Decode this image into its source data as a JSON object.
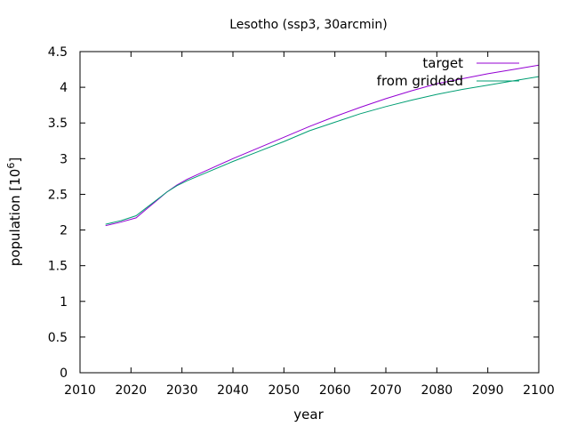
{
  "chart_data": {
    "type": "line",
    "title": "Lesotho (ssp3, 30arcmin)",
    "xlabel": "year",
    "ylabel": "population [10",
    "ylabel_superscript": "6",
    "ylabel_suffix": "]",
    "xlim": [
      2010,
      2100
    ],
    "ylim": [
      0,
      4.5
    ],
    "xticks": [
      2010,
      2020,
      2030,
      2040,
      2050,
      2060,
      2070,
      2080,
      2090,
      2100
    ],
    "yticks": [
      0,
      0.5,
      1,
      1.5,
      2,
      2.5,
      3,
      3.5,
      4,
      4.5
    ],
    "xtick_labels": [
      "2010",
      "2020",
      "2030",
      "2040",
      "2050",
      "2060",
      "2070",
      "2080",
      "2090",
      "2100"
    ],
    "ytick_labels": [
      "0",
      "0.5",
      "1",
      "1.5",
      "2",
      "2.5",
      "3",
      "3.5",
      "4",
      "4.5"
    ],
    "grid": false,
    "legend_position": "top-right",
    "series": [
      {
        "name": "target",
        "color": "#9400d3",
        "x": [
          2015,
          2018,
          2021,
          2023,
          2025,
          2027,
          2029,
          2031,
          2035,
          2040,
          2045,
          2050,
          2055,
          2060,
          2065,
          2070,
          2075,
          2080,
          2085,
          2090,
          2095,
          2100
        ],
        "y": [
          2.06,
          2.11,
          2.17,
          2.29,
          2.41,
          2.53,
          2.63,
          2.71,
          2.84,
          3.0,
          3.15,
          3.3,
          3.45,
          3.59,
          3.72,
          3.84,
          3.95,
          4.05,
          4.12,
          4.19,
          4.25,
          4.31
        ]
      },
      {
        "name": "from gridded",
        "color": "#009e73",
        "x": [
          2015,
          2018,
          2021,
          2023,
          2025,
          2027,
          2029,
          2031,
          2035,
          2040,
          2045,
          2050,
          2055,
          2060,
          2065,
          2070,
          2075,
          2080,
          2085,
          2090,
          2095,
          2100
        ],
        "y": [
          2.08,
          2.13,
          2.2,
          2.31,
          2.42,
          2.53,
          2.62,
          2.69,
          2.81,
          2.96,
          3.1,
          3.24,
          3.39,
          3.51,
          3.63,
          3.73,
          3.82,
          3.9,
          3.97,
          4.03,
          4.09,
          4.15
        ]
      }
    ]
  }
}
